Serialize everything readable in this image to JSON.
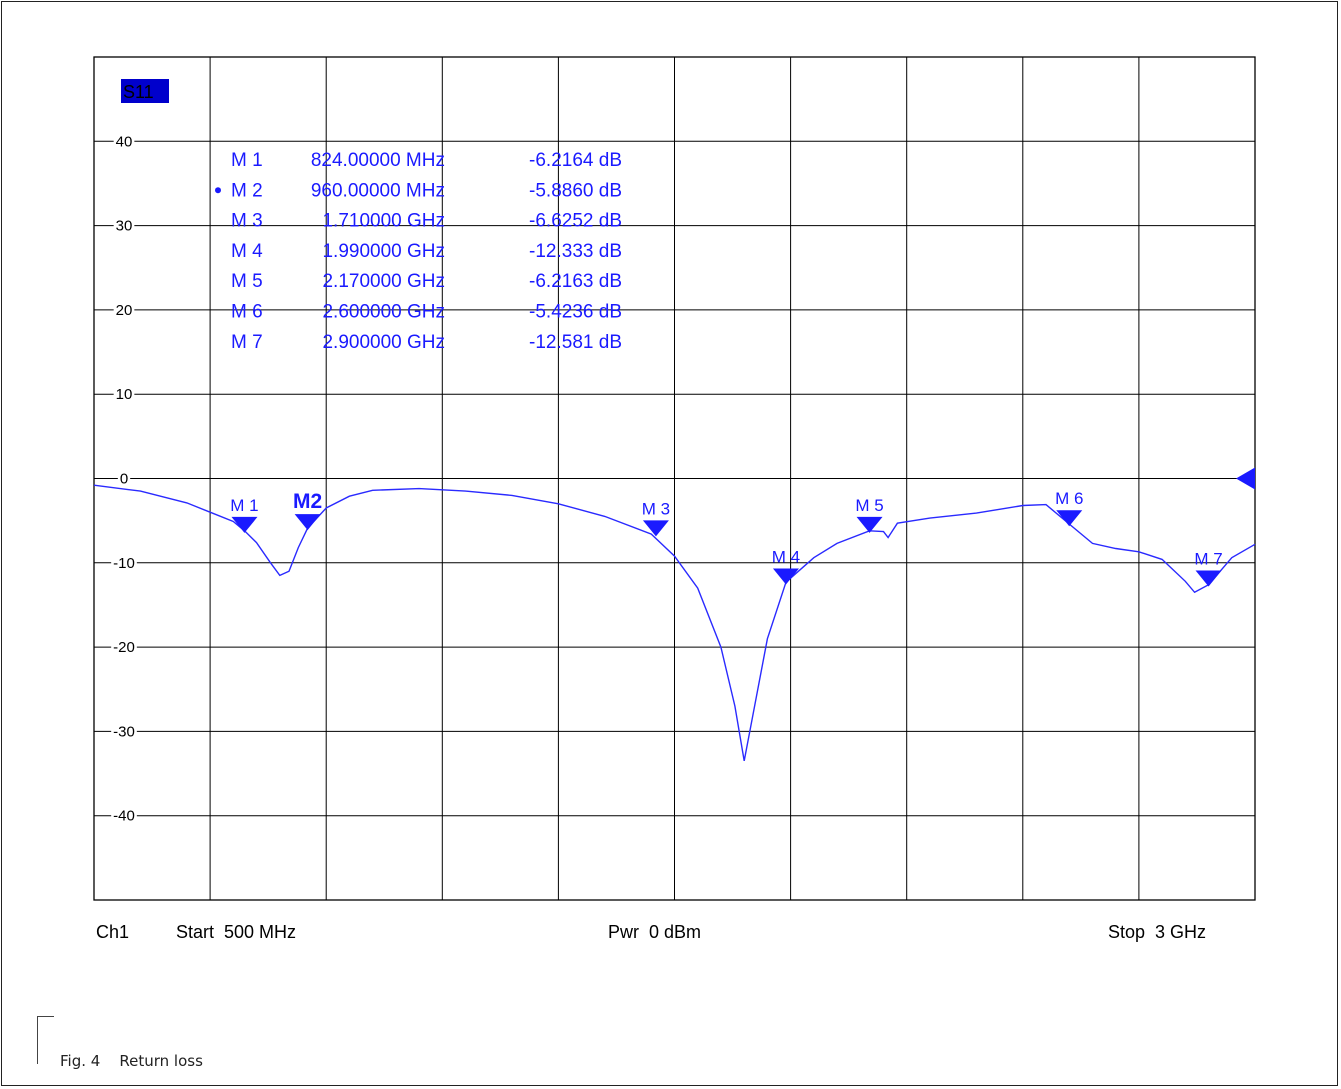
{
  "chart_data": {
    "type": "line",
    "trace_label": "S11",
    "x_unit": "GHz",
    "xlim": [
      0.5,
      3.0
    ],
    "ylim": [
      -50,
      50
    ],
    "y_ticks": [
      40,
      30,
      20,
      10,
      0,
      -10,
      -20,
      -30,
      -40
    ],
    "y_tick_labels": [
      "40",
      "30",
      "20",
      "10",
      "0",
      "-10",
      "-20",
      "-30",
      "-40"
    ],
    "grid": true,
    "x_divisions": 10,
    "footer": {
      "channel": "Ch1",
      "start": "Start  500 MHz",
      "power": "Pwr  0 dBm",
      "stop": "Stop  3 GHz"
    },
    "series": [
      {
        "x": [
          0.5,
          0.6,
          0.7,
          0.75,
          0.8,
          0.824,
          0.85,
          0.88,
          0.9,
          0.92,
          0.94,
          0.96,
          1.0,
          1.05,
          1.1,
          1.2,
          1.3,
          1.4,
          1.5,
          1.6,
          1.7,
          1.75,
          1.8,
          1.85,
          1.88,
          1.9,
          1.95,
          1.99,
          2.05,
          2.1,
          2.17,
          2.2,
          2.21,
          2.23,
          2.3,
          2.4,
          2.5,
          2.55,
          2.6,
          2.65,
          2.7,
          2.75,
          2.8,
          2.85,
          2.87,
          2.9,
          2.95,
          3.0
        ],
        "y": [
          -0.8,
          -1.5,
          -2.9,
          -4.0,
          -5.1,
          -6.2,
          -7.6,
          -10.0,
          -11.5,
          -11.0,
          -8.2,
          -5.9,
          -3.5,
          -2.1,
          -1.4,
          -1.2,
          -1.5,
          -2.0,
          -3.0,
          -4.5,
          -6.6,
          -9.2,
          -13.0,
          -20.0,
          -27.0,
          -33.5,
          -19.0,
          -12.3,
          -9.4,
          -7.7,
          -6.2,
          -6.3,
          -7.0,
          -5.3,
          -4.7,
          -4.1,
          -3.2,
          -3.1,
          -5.4,
          -7.7,
          -8.3,
          -8.7,
          -9.6,
          -12.2,
          -13.5,
          -12.6,
          -9.4,
          -7.8
        ]
      }
    ],
    "markers": [
      {
        "id": "M 1",
        "label": "M 1",
        "freq": "824.00000 MHz",
        "value": "-6.2164 dB",
        "x": 0.824,
        "y": -6.2164,
        "active": false
      },
      {
        "id": "M 2",
        "label": "M2",
        "freq": "960.00000 MHz",
        "value": "-5.8860 dB",
        "x": 0.96,
        "y": -5.886,
        "active": true
      },
      {
        "id": "M 3",
        "label": "M 3",
        "freq": "1.710000 GHz",
        "value": "-6.6252 dB",
        "x": 1.71,
        "y": -6.6252,
        "active": false
      },
      {
        "id": "M 4",
        "label": "M 4",
        "freq": "1.990000 GHz",
        "value": "-12.333 dB",
        "x": 1.99,
        "y": -12.333,
        "active": false
      },
      {
        "id": "M 5",
        "label": "M 5",
        "freq": "2.170000 GHz",
        "value": "-6.2163 dB",
        "x": 2.17,
        "y": -6.2163,
        "active": false
      },
      {
        "id": "M 6",
        "label": "M 6",
        "freq": "2.600000 GHz",
        "value": "-5.4236 dB",
        "x": 2.6,
        "y": -5.4236,
        "active": false
      },
      {
        "id": "M 7",
        "label": "M 7",
        "freq": "2.900000 GHz",
        "value": "-12.581 dB",
        "x": 2.9,
        "y": -12.581,
        "active": false
      }
    ],
    "colors": {
      "trace": "#2a2aff",
      "marker": "#1a1aff",
      "grid": "#000000",
      "trace_label_bg": "#0000cc",
      "trace_label_fg": "#ffffff"
    }
  },
  "caption": "Fig. 4    Return loss"
}
